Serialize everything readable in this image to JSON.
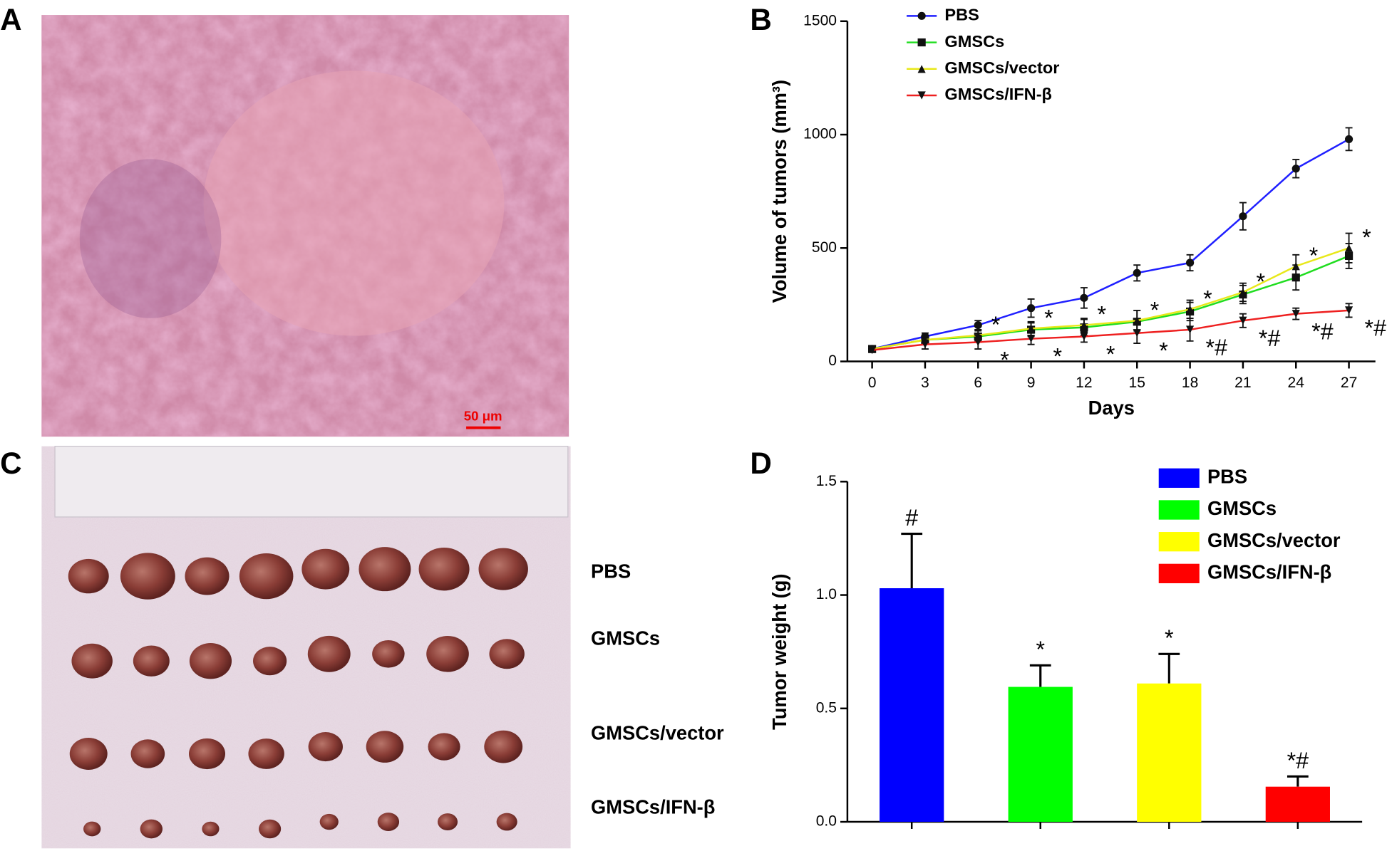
{
  "panels": {
    "labels": [
      "A",
      "B",
      "C",
      "D"
    ]
  },
  "panel_a": {
    "scale_bar": "50 μm"
  },
  "panel_c": {
    "group_labels": [
      "PBS",
      "GMSCs",
      "GMSCs/vector",
      "GMSCs/IFN-β"
    ]
  },
  "chart_data": [
    {
      "type": "line",
      "xlabel": "Days",
      "ylabel": "Volume of tumors (mm³)",
      "x": [
        0,
        3,
        6,
        9,
        12,
        15,
        18,
        21,
        24,
        27
      ],
      "xlim": [
        -1.4,
        28.5
      ],
      "xticks": [
        0,
        3,
        6,
        9,
        12,
        15,
        18,
        21,
        24,
        27
      ],
      "ylim": [
        0,
        1500
      ],
      "yticks": [
        0,
        500,
        1000,
        1500
      ],
      "legend": "top-left",
      "series": [
        {
          "name": "PBS",
          "color": "#1f1fff",
          "marker": "circle",
          "values": [
            55,
            110,
            160,
            235,
            280,
            390,
            435,
            640,
            850,
            980
          ],
          "errors": [
            10,
            15,
            20,
            40,
            45,
            35,
            35,
            60,
            40,
            50
          ]
        },
        {
          "name": "GMSCs",
          "color": "#1fdd1f",
          "marker": "square",
          "values": [
            55,
            95,
            110,
            140,
            150,
            175,
            220,
            295,
            370,
            465
          ],
          "errors": [
            10,
            15,
            25,
            30,
            35,
            50,
            40,
            40,
            55,
            55
          ]
        },
        {
          "name": "GMSCs/vector",
          "color": "#e8e81a",
          "marker": "triangle-up",
          "values": [
            55,
            95,
            115,
            145,
            160,
            180,
            230,
            305,
            420,
            500
          ],
          "errors": [
            10,
            15,
            25,
            30,
            30,
            45,
            40,
            40,
            50,
            65
          ],
          "significance": [
            null,
            null,
            "*",
            "*",
            "*",
            "*",
            "*",
            "*",
            "*",
            "*"
          ]
        },
        {
          "name": "GMSCs/IFN-β",
          "color": "#ee2020",
          "marker": "triangle-down",
          "values": [
            50,
            75,
            85,
            100,
            110,
            125,
            140,
            180,
            210,
            225
          ],
          "errors": [
            10,
            20,
            30,
            25,
            25,
            45,
            50,
            30,
            25,
            30
          ],
          "significance": [
            null,
            null,
            "*",
            "*",
            "*",
            "*",
            "*#",
            "*#",
            "*#",
            "*#"
          ]
        }
      ]
    },
    {
      "type": "bar",
      "ylabel": "Tumor weight (g)",
      "categories": [
        "PBS",
        "GMSCs",
        "GMSCs/vector",
        "GMSCs/IFN-β"
      ],
      "colors": [
        "#0000ff",
        "#00ff00",
        "#ffff00",
        "#ff0000"
      ],
      "values": [
        1.03,
        0.595,
        0.61,
        0.155
      ],
      "errors": [
        0.24,
        0.095,
        0.13,
        0.045
      ],
      "significance": [
        "#",
        "*",
        "*",
        "*#"
      ],
      "ylim": [
        0,
        1.5
      ],
      "yticks": [
        {
          "value": 0,
          "label": "0.0"
        },
        0.5,
        {
          "value": 1,
          "label": "1.0"
        },
        1.5
      ],
      "legend": "top-right"
    }
  ]
}
